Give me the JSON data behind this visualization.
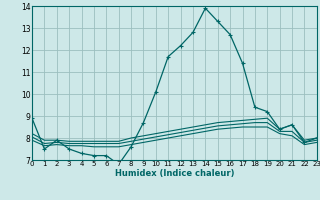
{
  "xlabel": "Humidex (Indice chaleur)",
  "bg_color": "#cde8e8",
  "grid_color": "#9bbfbf",
  "line_color": "#006666",
  "xlim": [
    0,
    23
  ],
  "ylim": [
    7,
    14
  ],
  "yticks": [
    7,
    8,
    9,
    10,
    11,
    12,
    13,
    14
  ],
  "xticks": [
    0,
    1,
    2,
    3,
    4,
    5,
    6,
    7,
    8,
    9,
    10,
    11,
    12,
    13,
    14,
    15,
    16,
    17,
    18,
    19,
    20,
    21,
    22,
    23
  ],
  "series": [
    {
      "x": [
        0,
        1,
        2,
        3,
        4,
        5,
        6,
        7,
        8,
        9,
        10,
        11,
        12,
        13,
        14,
        15,
        16,
        17,
        18,
        19,
        20,
        21,
        22,
        23
      ],
      "y": [
        8.9,
        7.5,
        7.9,
        7.5,
        7.3,
        7.2,
        7.2,
        6.8,
        7.6,
        8.7,
        10.1,
        11.7,
        12.2,
        12.8,
        13.9,
        13.3,
        12.7,
        11.4,
        9.4,
        9.2,
        8.4,
        8.6,
        7.8,
        8.0
      ],
      "marker": true
    },
    {
      "x": [
        0,
        1,
        2,
        3,
        4,
        5,
        6,
        7,
        8,
        9,
        10,
        11,
        12,
        13,
        14,
        15,
        16,
        17,
        18,
        19,
        20,
        21,
        22,
        23
      ],
      "y": [
        8.2,
        7.9,
        7.9,
        7.85,
        7.85,
        7.85,
        7.85,
        7.85,
        8.0,
        8.1,
        8.2,
        8.3,
        8.4,
        8.5,
        8.6,
        8.7,
        8.75,
        8.8,
        8.85,
        8.9,
        8.4,
        8.6,
        7.9,
        8.0
      ],
      "marker": false
    },
    {
      "x": [
        0,
        1,
        2,
        3,
        4,
        5,
        6,
        7,
        8,
        9,
        10,
        11,
        12,
        13,
        14,
        15,
        16,
        17,
        18,
        19,
        20,
        21,
        22,
        23
      ],
      "y": [
        8.05,
        7.75,
        7.8,
        7.75,
        7.75,
        7.75,
        7.75,
        7.75,
        7.85,
        7.95,
        8.05,
        8.15,
        8.25,
        8.35,
        8.45,
        8.55,
        8.6,
        8.65,
        8.7,
        8.7,
        8.3,
        8.3,
        7.8,
        7.9
      ],
      "marker": false
    },
    {
      "x": [
        0,
        1,
        2,
        3,
        4,
        5,
        6,
        7,
        8,
        9,
        10,
        11,
        12,
        13,
        14,
        15,
        16,
        17,
        18,
        19,
        20,
        21,
        22,
        23
      ],
      "y": [
        7.9,
        7.65,
        7.7,
        7.65,
        7.65,
        7.6,
        7.6,
        7.6,
        7.7,
        7.8,
        7.9,
        8.0,
        8.1,
        8.2,
        8.3,
        8.4,
        8.45,
        8.5,
        8.5,
        8.5,
        8.2,
        8.1,
        7.7,
        7.8
      ],
      "marker": false
    }
  ]
}
